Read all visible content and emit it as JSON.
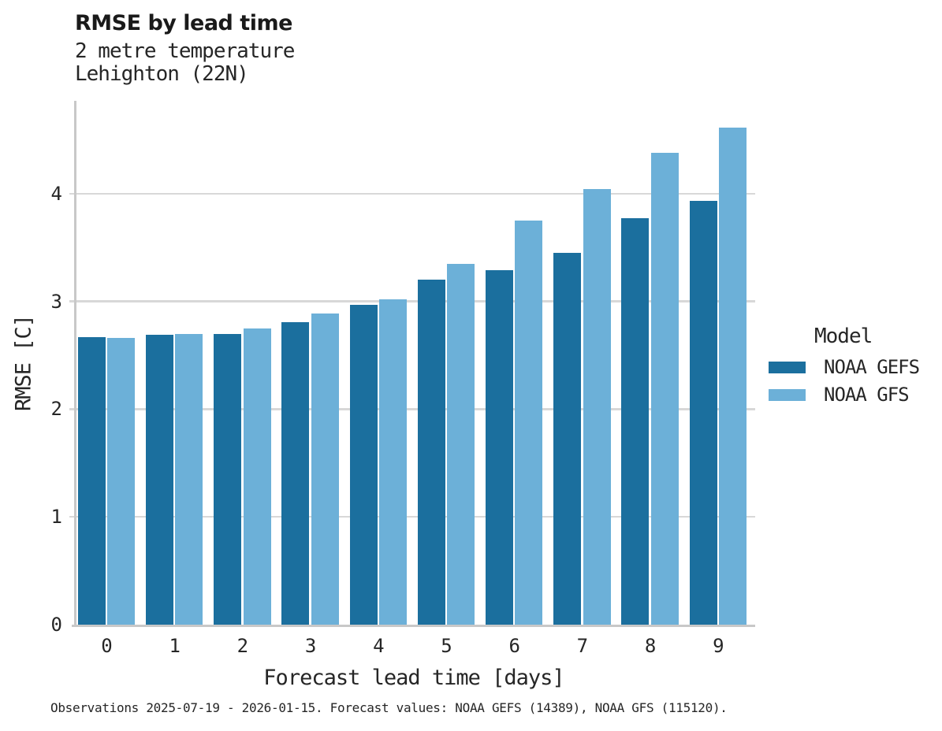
{
  "title": "RMSE by lead time",
  "subtitle_line1": "2 metre temperature",
  "subtitle_line2": "Lehighton (22N)",
  "caption": "Observations 2025-07-19 - 2026-01-15. Forecast values: NOAA GEFS (14389), NOAA GFS (115120).",
  "legend": {
    "title": "Model",
    "entries": [
      {
        "label": "NOAA GEFS",
        "color": "#1b6f9e"
      },
      {
        "label": "NOAA GFS",
        "color": "#6cb0d8"
      }
    ]
  },
  "colors": {
    "gefs_bar": "#1b6f9e",
    "gfs_bar": "#6cb0d8",
    "gridline": "#d8d8d8",
    "spine": "#c8c8c8",
    "text": "#262626"
  },
  "chart_data": {
    "type": "bar",
    "title": "RMSE by lead time",
    "subtitle": [
      "2 metre temperature",
      "Lehighton (22N)"
    ],
    "categories": [
      "0",
      "1",
      "2",
      "3",
      "4",
      "5",
      "6",
      "7",
      "8",
      "9"
    ],
    "series": [
      {
        "name": "NOAA GEFS",
        "color": "#1b6f9e",
        "values": [
          2.67,
          2.69,
          2.7,
          2.81,
          2.97,
          3.2,
          3.29,
          3.45,
          3.77,
          3.93
        ]
      },
      {
        "name": "NOAA GFS",
        "color": "#6cb0d8",
        "values": [
          2.66,
          2.7,
          2.75,
          2.89,
          3.02,
          3.35,
          3.75,
          4.04,
          4.38,
          4.61
        ]
      }
    ],
    "xlabel": "Forecast lead time [days]",
    "ylabel": "RMSE [C]",
    "ylim": [
      0,
      4.86
    ],
    "yticks": [
      0,
      1,
      2,
      3,
      4
    ],
    "grid": "horizontal-only",
    "legend_position": "right",
    "legend_title": "Model"
  }
}
